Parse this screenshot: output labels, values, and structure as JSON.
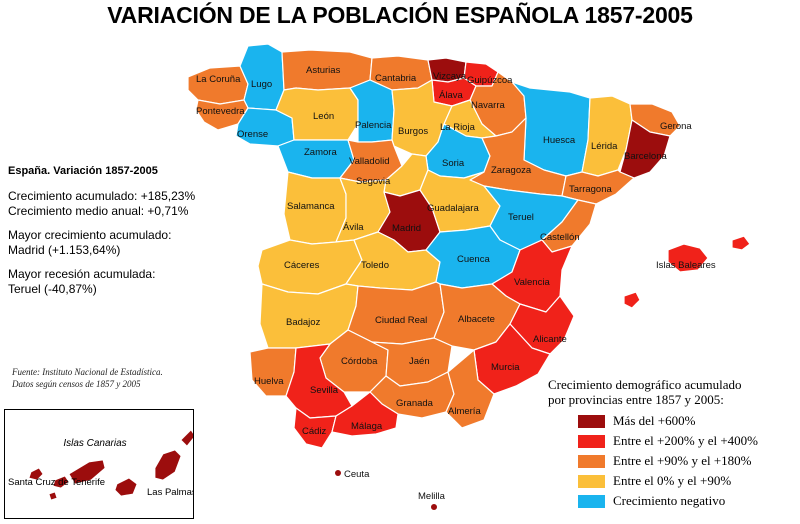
{
  "title": "VARIACIÓN DE LA POBLACIÓN ESPAÑOLA 1857-2005",
  "colors": {
    "mas_600": "#9c0d0d",
    "r200_400": "#f0221a",
    "r90_180": "#f07a2c",
    "r0_90": "#fbbf3a",
    "negativo": "#1ab4ee",
    "border": "#ffffff"
  },
  "stats": {
    "heading": "España. Variación 1857-2005",
    "crecimiento_acumulado": "Crecimiento acumulado: +185,23%",
    "crecimiento_medio": "Crecimiento medio anual: +0,71%",
    "mayor_crecimiento_label": "Mayor crecimiento acumulado:",
    "mayor_crecimiento_value": "Madrid (+1.153,64%)",
    "mayor_recesion_label": "Mayor recesión acumulada:",
    "mayor_recesion_value": "Teruel (-40,87%)"
  },
  "source": {
    "line1": "Fuente: Instituto Nacional de Estadística.",
    "line2": "Datos según censos de 1857 y 2005"
  },
  "legend": {
    "title_line1": "Crecimiento demográfico acumulado",
    "title_line2": "por provincias entre 1857 y 2005:",
    "items": [
      {
        "label": "Más del +600%",
        "class": "mas_600"
      },
      {
        "label": "Entre el +200% y el +400%",
        "class": "r200_400"
      },
      {
        "label": "Entre el +90% y el +180%",
        "class": "r90_180"
      },
      {
        "label": "Entre el 0% y el +90%",
        "class": "r0_90"
      },
      {
        "label": "Crecimiento negativo",
        "class": "negativo"
      }
    ]
  },
  "provinces": [
    {
      "name": "La Coruña",
      "class": "r90_180"
    },
    {
      "name": "Lugo",
      "class": "negativo"
    },
    {
      "name": "Pontevedra",
      "class": "r90_180"
    },
    {
      "name": "Orense",
      "class": "negativo"
    },
    {
      "name": "Asturias",
      "class": "r90_180"
    },
    {
      "name": "Cantabria",
      "class": "r90_180"
    },
    {
      "name": "Vizcaya",
      "class": "mas_600"
    },
    {
      "name": "Guipúzcoa",
      "class": "r200_400"
    },
    {
      "name": "Álava",
      "class": "r200_400"
    },
    {
      "name": "Navarra",
      "class": "r90_180"
    },
    {
      "name": "León",
      "class": "r0_90"
    },
    {
      "name": "Palencia",
      "class": "negativo"
    },
    {
      "name": "Burgos",
      "class": "r0_90"
    },
    {
      "name": "La Rioja",
      "class": "r0_90"
    },
    {
      "name": "Zamora",
      "class": "negativo"
    },
    {
      "name": "Valladolid",
      "class": "r90_180"
    },
    {
      "name": "Soria",
      "class": "negativo"
    },
    {
      "name": "Segovia",
      "class": "r0_90"
    },
    {
      "name": "Huesca",
      "class": "negativo"
    },
    {
      "name": "Zaragoza",
      "class": "r90_180"
    },
    {
      "name": "Lérida",
      "class": "r0_90"
    },
    {
      "name": "Gerona",
      "class": "r90_180"
    },
    {
      "name": "Barcelona",
      "class": "mas_600"
    },
    {
      "name": "Tarragona",
      "class": "r90_180"
    },
    {
      "name": "Salamanca",
      "class": "r0_90"
    },
    {
      "name": "Ávila",
      "class": "r0_90"
    },
    {
      "name": "Madrid",
      "class": "mas_600"
    },
    {
      "name": "Guadalajara",
      "class": "r0_90"
    },
    {
      "name": "Teruel",
      "class": "negativo"
    },
    {
      "name": "Castellón",
      "class": "r90_180"
    },
    {
      "name": "Cáceres",
      "class": "r0_90"
    },
    {
      "name": "Toledo",
      "class": "r0_90"
    },
    {
      "name": "Cuenca",
      "class": "negativo"
    },
    {
      "name": "Valencia",
      "class": "r200_400"
    },
    {
      "name": "Badajoz",
      "class": "r0_90"
    },
    {
      "name": "Ciudad Real",
      "class": "r90_180"
    },
    {
      "name": "Albacete",
      "class": "r90_180"
    },
    {
      "name": "Alicante",
      "class": "r200_400"
    },
    {
      "name": "Murcia",
      "class": "r200_400"
    },
    {
      "name": "Córdoba",
      "class": "r90_180"
    },
    {
      "name": "Jaén",
      "class": "r90_180"
    },
    {
      "name": "Huelva",
      "class": "r90_180"
    },
    {
      "name": "Sevilla",
      "class": "r200_400"
    },
    {
      "name": "Granada",
      "class": "r90_180"
    },
    {
      "name": "Almería",
      "class": "r90_180"
    },
    {
      "name": "Cádiz",
      "class": "r200_400"
    },
    {
      "name": "Málaga",
      "class": "r200_400"
    },
    {
      "name": "Islas Baleares",
      "class": "r200_400"
    },
    {
      "name": "Ceuta",
      "class": "mas_600"
    },
    {
      "name": "Melilla",
      "class": "mas_600"
    }
  ],
  "canarias": {
    "title": "Islas Canarias",
    "santa_cruz": "Santa Cruz de Tenerife",
    "las_palmas": "Las Palmas",
    "class": "mas_600"
  }
}
